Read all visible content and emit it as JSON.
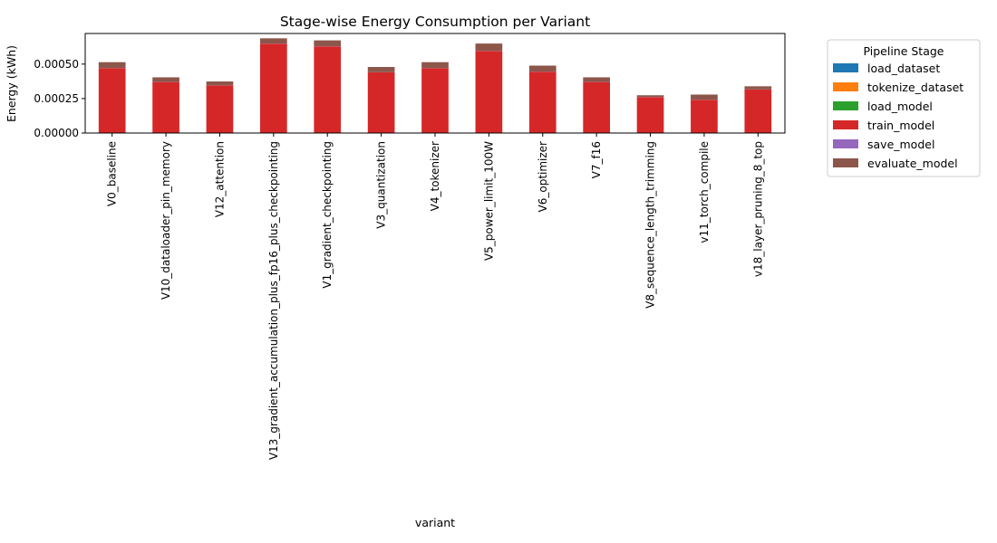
{
  "chart_data": {
    "type": "bar",
    "stacked": true,
    "title": "Stage-wise Energy Consumption per Variant",
    "xlabel": "variant",
    "ylabel": "Energy (kWh)",
    "ylim": [
      0,
      0.000722
    ],
    "yticks": [
      0,
      0.00025,
      0.0005
    ],
    "ytick_labels": [
      "0.00000",
      "0.00025",
      "0.00050"
    ],
    "grid": false,
    "legend_title": "Pipeline Stage",
    "legend_position": "outside-right",
    "categories": [
      "V0_baseline",
      "V10_dataloader_pin_memory",
      "V12_attention",
      "V13_gradient_accumulation_plus_fp16_plus_checkpointing",
      "V1_gradient_checkpointing",
      "V3_quantization",
      "V4_tokenizer",
      "V5_power_limit_100W",
      "V6_optimizer",
      "V7_f16",
      "V8_sequence_length_trimming",
      "v11_torch_compile",
      "v18_layer_pruning_8_top"
    ],
    "series": [
      {
        "name": "load_dataset",
        "color": "#1f77b4",
        "values": [
          1e-06,
          1e-06,
          1e-06,
          1e-06,
          1e-06,
          1e-06,
          1e-06,
          1e-06,
          1e-06,
          1e-06,
          1e-06,
          1e-06,
          1e-06
        ]
      },
      {
        "name": "tokenize_dataset",
        "color": "#ff7f0e",
        "values": [
          1e-06,
          1e-06,
          1e-06,
          1e-06,
          1e-06,
          1e-06,
          1e-06,
          1e-06,
          1e-06,
          1e-06,
          1e-06,
          1e-06,
          1e-06
        ]
      },
      {
        "name": "load_model",
        "color": "#2ca02c",
        "values": [
          1e-06,
          1e-06,
          1e-06,
          1e-06,
          1e-06,
          1e-06,
          1e-06,
          1e-06,
          1e-06,
          1e-06,
          1e-06,
          1e-06,
          1e-06
        ]
      },
      {
        "name": "train_model",
        "color": "#d62728",
        "values": [
          0.000467,
          0.000367,
          0.000342,
          0.000645,
          0.000625,
          0.000437,
          0.000467,
          0.000592,
          0.000442,
          0.000367,
          0.000257,
          0.000237,
          0.000312
        ]
      },
      {
        "name": "save_model",
        "color": "#9467bd",
        "values": [
          1e-06,
          1e-06,
          1e-06,
          1e-06,
          1e-06,
          1e-06,
          1e-06,
          1e-06,
          1e-06,
          1e-06,
          1e-06,
          1e-06,
          1e-06
        ]
      },
      {
        "name": "evaluate_model",
        "color": "#8c564b",
        "values": [
          4.3e-05,
          3.3e-05,
          2.8e-05,
          3.8e-05,
          4.3e-05,
          3.8e-05,
          4.3e-05,
          5.3e-05,
          4.3e-05,
          3.3e-05,
          1.3e-05,
          3.8e-05,
          2.3e-05
        ]
      }
    ]
  }
}
